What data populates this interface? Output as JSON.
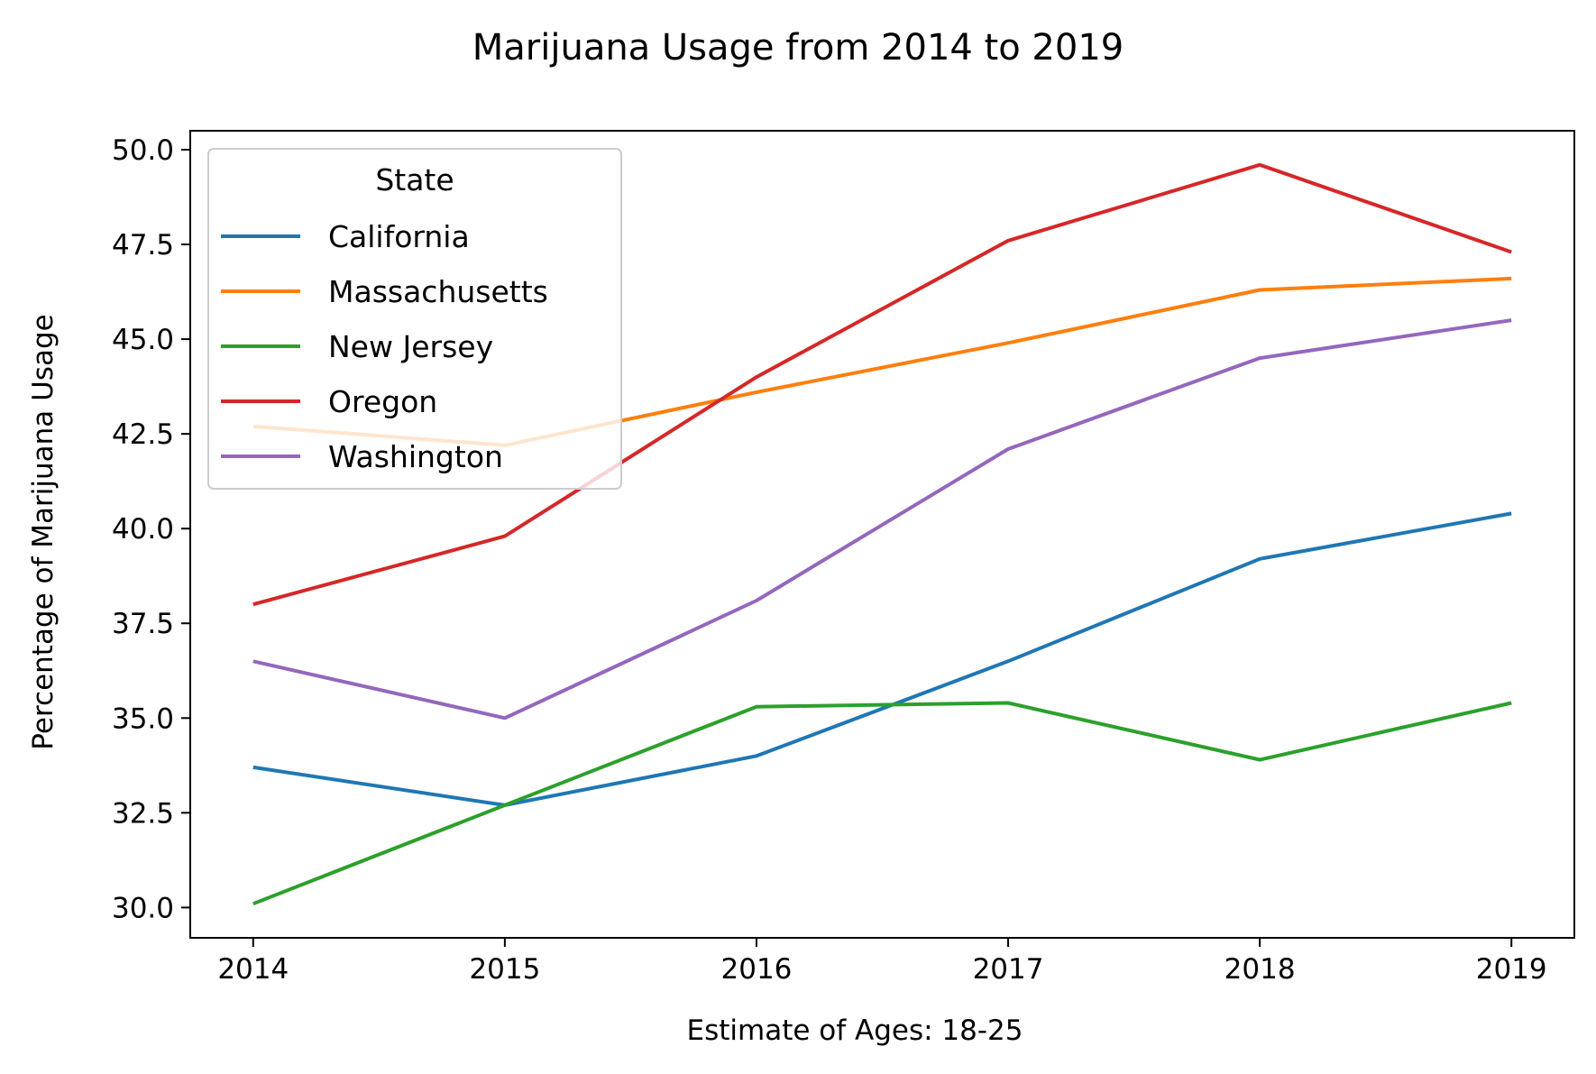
{
  "chart_data": {
    "type": "line",
    "title": "Marijuana Usage from 2014 to 2019",
    "xlabel": "Estimate of Ages: 18-25",
    "ylabel": "Percentage of Marijuana Usage",
    "x": [
      2014,
      2015,
      2016,
      2017,
      2018,
      2019
    ],
    "x_tick_labels": [
      "2014",
      "2015",
      "2016",
      "2017",
      "2018",
      "2019"
    ],
    "xlim": [
      2013.75,
      2019.25
    ],
    "ylim": [
      29.2,
      50.5
    ],
    "y_ticks": [
      30.0,
      32.5,
      35.0,
      37.5,
      40.0,
      42.5,
      45.0,
      47.5,
      50.0
    ],
    "y_tick_labels": [
      "30.0",
      "32.5",
      "35.0",
      "37.5",
      "40.0",
      "42.5",
      "45.0",
      "47.5",
      "50.0"
    ],
    "grid": false,
    "legend": {
      "title": "State",
      "placement": "top-left"
    },
    "series": [
      {
        "name": "California",
        "color": "#1f77b4",
        "values": [
          33.7,
          32.7,
          34.0,
          36.5,
          39.2,
          40.4
        ]
      },
      {
        "name": "Massachusetts",
        "color": "#ff7f0e",
        "values": [
          42.7,
          42.2,
          43.6,
          44.9,
          46.3,
          46.6
        ]
      },
      {
        "name": "New Jersey",
        "color": "#2ca02c",
        "values": [
          30.1,
          32.7,
          35.3,
          35.4,
          33.9,
          35.4
        ]
      },
      {
        "name": "Oregon",
        "color": "#d62728",
        "values": [
          38.0,
          39.8,
          44.0,
          47.6,
          49.6,
          47.3
        ]
      },
      {
        "name": "Washington",
        "color": "#9467bd",
        "values": [
          36.5,
          35.0,
          38.1,
          42.1,
          44.5,
          45.5
        ]
      }
    ]
  }
}
